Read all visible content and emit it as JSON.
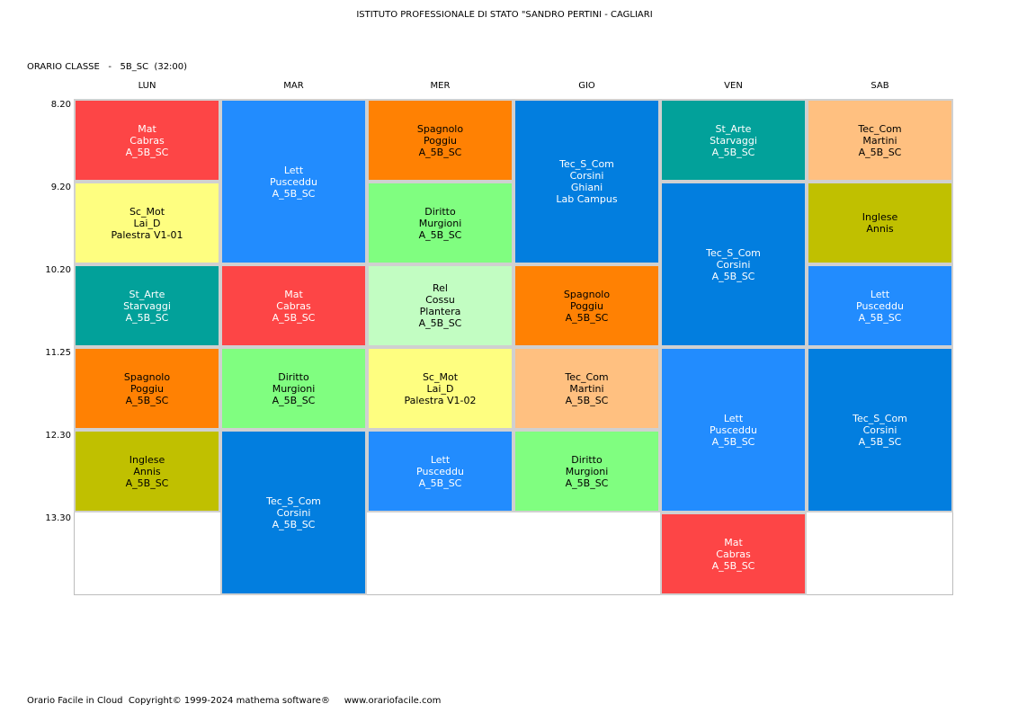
{
  "header": {
    "school": "ISTITUTO PROFESSIONALE DI STATO \"SANDRO PERTINI - CAGLIARI",
    "class_label": "ORARIO CLASSE   -   5B_SC  (32:00)"
  },
  "days": [
    "LUN",
    "MAR",
    "MER",
    "GIO",
    "VEN",
    "SAB"
  ],
  "times": [
    "8.20",
    "9.20",
    "10.20",
    "11.25",
    "12.30",
    "13.30"
  ],
  "lessons": [
    {
      "day": 0,
      "start": 0,
      "span": 1,
      "color": "#fd4546",
      "lines": [
        "Mat",
        "Cabras",
        "A_5B_SC"
      ]
    },
    {
      "day": 0,
      "start": 1,
      "span": 1,
      "color": "#fefe80",
      "lines": [
        "Sc_Mot",
        "Lai_D",
        "Palestra V1-01"
      ]
    },
    {
      "day": 0,
      "start": 2,
      "span": 1,
      "color": "#02a19a",
      "lines": [
        "St_Arte",
        "Starvaggi",
        "A_5B_SC"
      ]
    },
    {
      "day": 0,
      "start": 3,
      "span": 1,
      "color": "#ff8103",
      "lines": [
        "Spagnolo",
        "Poggiu",
        "A_5B_SC"
      ]
    },
    {
      "day": 0,
      "start": 4,
      "span": 1,
      "color": "#c0c000",
      "lines": [
        "Inglese",
        "Annis",
        "A_5B_SC"
      ]
    },
    {
      "day": 1,
      "start": 0,
      "span": 2,
      "color": "#228cfe",
      "lines": [
        "Lett",
        "Pusceddu",
        "A_5B_SC"
      ]
    },
    {
      "day": 1,
      "start": 2,
      "span": 1,
      "color": "#fd4546",
      "lines": [
        "Mat",
        "Cabras",
        "A_5B_SC"
      ]
    },
    {
      "day": 1,
      "start": 3,
      "span": 1,
      "color": "#80fe80",
      "lines": [
        "Diritto",
        "Murgioni",
        "A_5B_SC"
      ]
    },
    {
      "day": 1,
      "start": 4,
      "span": 2,
      "color": "#027edf",
      "lines": [
        "Tec_S_Com",
        "Corsini",
        "A_5B_SC"
      ]
    },
    {
      "day": 2,
      "start": 0,
      "span": 1,
      "color": "#ff8103",
      "lines": [
        "Spagnolo",
        "Poggiu",
        "A_5B_SC"
      ]
    },
    {
      "day": 2,
      "start": 1,
      "span": 1,
      "color": "#80fe80",
      "lines": [
        "Diritto",
        "Murgioni",
        "A_5B_SC"
      ]
    },
    {
      "day": 2,
      "start": 2,
      "span": 1,
      "color": "#c2fdc2",
      "lines": [
        "Rel",
        "Cossu",
        "Plantera",
        "A_5B_SC"
      ]
    },
    {
      "day": 2,
      "start": 3,
      "span": 1,
      "color": "#fefe80",
      "lines": [
        "Sc_Mot",
        "Lai_D",
        "Palestra V1-02"
      ]
    },
    {
      "day": 2,
      "start": 4,
      "span": 1,
      "color": "#228cfe",
      "lines": [
        "Lett",
        "Pusceddu",
        "A_5B_SC"
      ]
    },
    {
      "day": 3,
      "start": 0,
      "span": 2,
      "color": "#027edf",
      "lines": [
        "Tec_S_Com",
        "Corsini",
        "Ghiani",
        "Lab Campus"
      ]
    },
    {
      "day": 3,
      "start": 2,
      "span": 1,
      "color": "#ff8103",
      "lines": [
        "Spagnolo",
        "Poggiu",
        "A_5B_SC"
      ]
    },
    {
      "day": 3,
      "start": 3,
      "span": 1,
      "color": "#ffc080",
      "lines": [
        "Tec_Com",
        "Martini",
        "A_5B_SC"
      ]
    },
    {
      "day": 3,
      "start": 4,
      "span": 1,
      "color": "#80fe80",
      "lines": [
        "Diritto",
        "Murgioni",
        "A_5B_SC"
      ]
    },
    {
      "day": 4,
      "start": 0,
      "span": 1,
      "color": "#02a19a",
      "lines": [
        "St_Arte",
        "Starvaggi",
        "A_5B_SC"
      ]
    },
    {
      "day": 4,
      "start": 1,
      "span": 2,
      "color": "#027edf",
      "lines": [
        "Tec_S_Com",
        "Corsini",
        "A_5B_SC"
      ]
    },
    {
      "day": 4,
      "start": 3,
      "span": 2,
      "color": "#228cfe",
      "lines": [
        "Lett",
        "Pusceddu",
        "A_5B_SC"
      ]
    },
    {
      "day": 4,
      "start": 5,
      "span": 1,
      "color": "#fd4546",
      "lines": [
        "Mat",
        "Cabras",
        "A_5B_SC"
      ]
    },
    {
      "day": 5,
      "start": 0,
      "span": 1,
      "color": "#ffc080",
      "lines": [
        "Tec_Com",
        "Martini",
        "A_5B_SC"
      ]
    },
    {
      "day": 5,
      "start": 1,
      "span": 1,
      "color": "#c0c000",
      "lines": [
        "Inglese",
        "Annis"
      ]
    },
    {
      "day": 5,
      "start": 2,
      "span": 1,
      "color": "#228cfe",
      "lines": [
        "Lett",
        "Pusceddu",
        "A_5B_SC"
      ]
    },
    {
      "day": 5,
      "start": 3,
      "span": 2,
      "color": "#027edf",
      "lines": [
        "Tec_S_Com",
        "Corsini",
        "A_5B_SC"
      ]
    }
  ],
  "footer": {
    "text": "Orario Facile in Cloud  Copyright© 1999-2024 mathema software®     www.orariofacile.com"
  }
}
